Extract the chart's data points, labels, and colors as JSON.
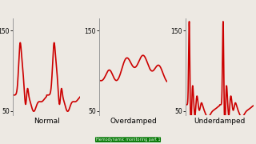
{
  "labels": [
    "Normal",
    "Overdamped",
    "Underdamped"
  ],
  "ylim": [
    45,
    165
  ],
  "yticks": [
    50,
    150
  ],
  "line_color": "#cc0000",
  "line_width": 1.2,
  "bg_color": "#ede9e3",
  "spine_color": "#999999",
  "label_fontsize": 6.5,
  "tick_fontsize": 5.5,
  "watermark_text": "Hemodynamic monitoring part 1",
  "watermark_color": "#007700",
  "watermark_fontsize": 3.5
}
